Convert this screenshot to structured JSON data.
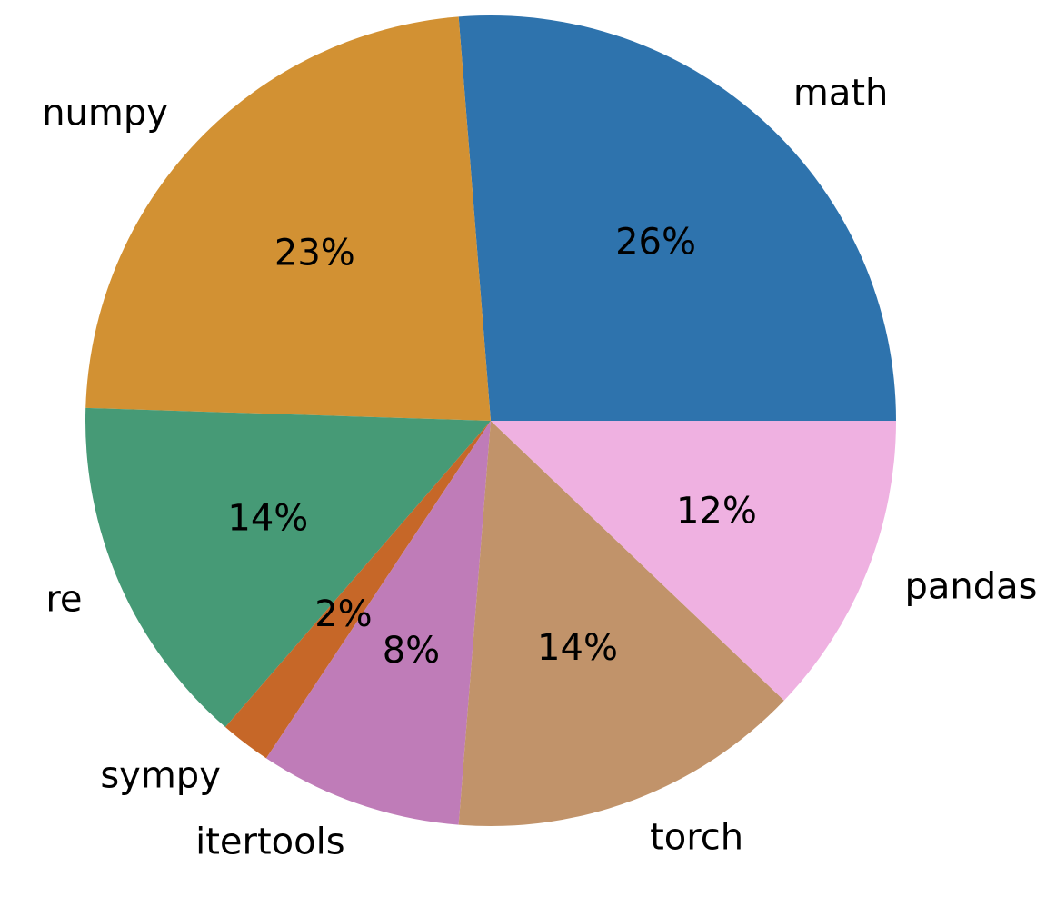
{
  "chart_data": {
    "type": "pie",
    "title": "",
    "start_angle_deg": 0,
    "direction": "counterclockwise",
    "slices": [
      {
        "label": "math",
        "percent": 26,
        "color": "#2e73ad"
      },
      {
        "label": "numpy",
        "percent": 23,
        "color": "#d29133"
      },
      {
        "label": "re",
        "percent": 14,
        "color": "#469a76"
      },
      {
        "label": "sympy",
        "percent": 2,
        "color": "#c66728"
      },
      {
        "label": "itertools",
        "percent": 8,
        "color": "#bf7cb8"
      },
      {
        "label": "torch",
        "percent": 14,
        "color": "#c1936a"
      },
      {
        "label": "pandas",
        "percent": 12,
        "color": "#efb1e1"
      }
    ],
    "value_label_format": "{percent}%",
    "legend": "none"
  }
}
